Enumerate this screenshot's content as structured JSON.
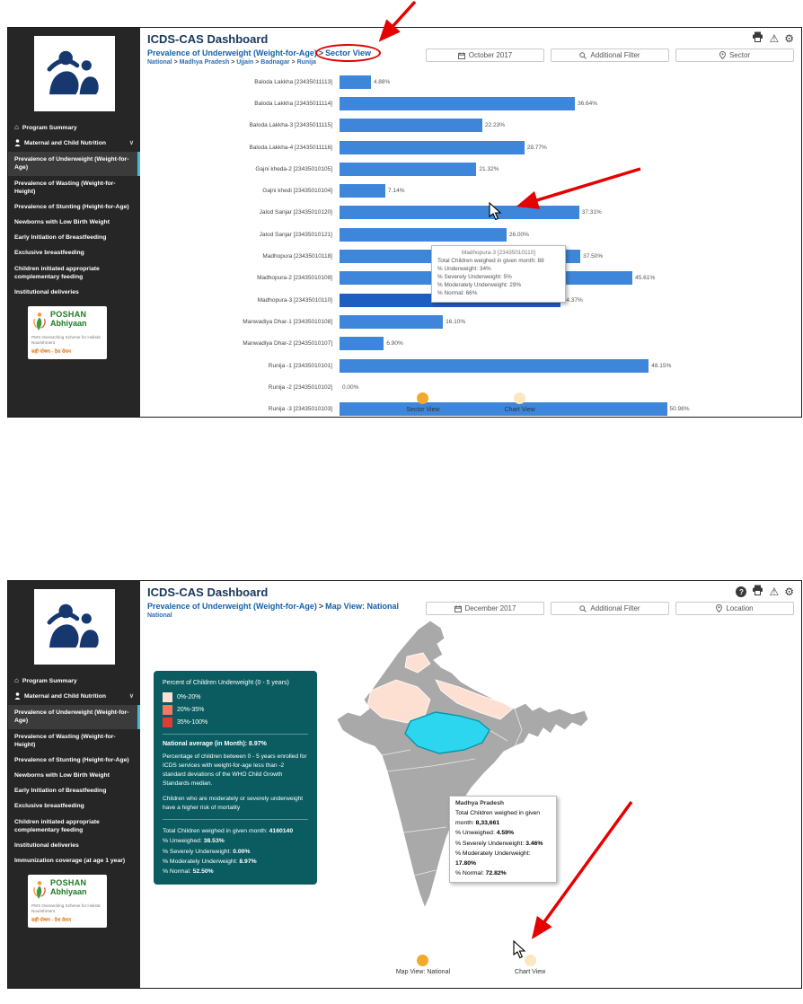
{
  "colors": {
    "sidebar_bg": "#262626",
    "sidebar_active_accent": "#46b8da",
    "header_title": "#17365d",
    "breadcrumb_blue": "#1461ab",
    "bar_color": "#3e86d9",
    "bar_highlight": "#1d5fc0",
    "toggle_active": "#f2a92e",
    "toggle_inactive": "#fbe7c0",
    "legend_bg": "#0a5c61",
    "map_base": "#a9a9a9",
    "map_light_shade": "#fee0d2",
    "map_highlight": "#2bd6ee",
    "annotation_red": "#e60000"
  },
  "glyphs": {
    "gear": "⚙",
    "warning": "⚠",
    "help": "?",
    "home": "⌂",
    "chevron_down": "∨",
    "separator": ">"
  },
  "sidebar": {
    "items": [
      {
        "label": "Program Summary",
        "icon": "home"
      },
      {
        "label": "Maternal and Child Nutrition",
        "icon": "person",
        "chevron": true
      },
      {
        "label": "Prevalence of Underweight (Weight-for-Age)",
        "active": true
      },
      {
        "label": "Prevalence of Wasting (Weight-for-Height)"
      },
      {
        "label": "Prevalence of Stunting (Height-for-Age)"
      },
      {
        "label": "Newborns with Low Birth Weight"
      },
      {
        "label": "Early Initiation of Breastfeeding"
      },
      {
        "label": "Exclusive breastfeeding"
      },
      {
        "label": "Children initiated appropriate complementary feeding"
      },
      {
        "label": "Institutional deliveries"
      }
    ],
    "extra_item": "Immunization coverage (at age 1 year)",
    "poshan": {
      "title1": "POSHAN",
      "title2": "Abhiyaan",
      "tagline": "PM's Overarching Scheme for Holistic Nourishment",
      "slogan": "सही पोषण - देश रोशन"
    }
  },
  "panel_top": {
    "title": "ICDS-CAS Dashboard",
    "icons": [
      "print",
      "warning",
      "gear"
    ],
    "breadcrumb": {
      "section": "Prevalence of Underweight (Weight-for-Age)",
      "separator": ">",
      "view": "Sector View"
    },
    "location_path": [
      "National",
      "Madhya Pradesh",
      "Ujjain",
      "Badnagar",
      "Runija"
    ],
    "filters": {
      "month": "October 2017",
      "additional": "Additional Filter",
      "level": "Sector"
    },
    "tooltip": {
      "title": "Madhopura-3 [23435010110]",
      "lines": [
        "Total Children weighed in given month: 88",
        "% Underweight: 34%",
        "% Severely Underweight: 5%",
        "% Moderately Underweight: 29%",
        "% Normal: 66%"
      ]
    },
    "toggle": [
      {
        "label": "Sector View",
        "active": true
      },
      {
        "label": "Chart View",
        "active": false
      }
    ]
  },
  "chart_data": [
    {
      "type": "bar",
      "orientation": "horizontal",
      "title": "Prevalence of Underweight (Weight-for-Age) - Sector View",
      "categories": [
        "Baloda Lakkha [23435011113]",
        "Baloda Lakkha [23435011114]",
        "Baloda Lakkha-3 [23435011115]",
        "Baloda Lakkha-4 [23435011116]",
        "Gajni kheda-2 [23435010105]",
        "Gajni khedi [23435010104]",
        "Jalod Sanjar [23435010120]",
        "Jalod Sanjar [23435010121]",
        "Madhopura [23435010118]",
        "Madhopura-2 [23435010109]",
        "Madhopura-3 [23435010110]",
        "Manwadiya Dhar-1 [23435010108]",
        "Manwadiya Dhar-2 [23435010107]",
        "Runija -1 [23435010101]",
        "Runija -2 [23435010102]",
        "Runija -3 [23435010103]"
      ],
      "values": [
        4.88,
        36.64,
        22.23,
        28.77,
        21.32,
        7.14,
        37.31,
        26.0,
        37.5,
        45.61,
        34.37,
        16.1,
        6.9,
        48.15,
        0.0,
        50.98
      ],
      "value_labels": [
        "4.88%",
        "36.64%",
        "22.23%",
        "28.77%",
        "21.32%",
        "7.14%",
        "37.31%",
        "26.00%",
        "37.50%",
        "45.61%",
        "34.37%",
        "16.10%",
        "6.90%",
        "48.15%",
        "0.00%",
        "50.98%"
      ],
      "highlighted_index": 10,
      "xlim": [
        0,
        55
      ],
      "legend_position": "none",
      "grid": false
    },
    {
      "type": "heatmap",
      "subtype": "choropleth-map-of-india",
      "title": "Map View: National",
      "legend_buckets": [
        "0%-20%",
        "20%-35%",
        "35%-100%"
      ],
      "national_average_pct": 8.97,
      "highlighted_region": "Madhya Pradesh",
      "highlighted_region_values": {
        "total_children_weighed": "8,33,661",
        "unweighed_pct": 4.59,
        "severely_underweight_pct": 3.46,
        "moderately_underweight_pct": 17.8,
        "normal_pct": 72.82
      }
    }
  ],
  "panel_bottom": {
    "title": "ICDS-CAS Dashboard",
    "icons": [
      "help",
      "print",
      "warning",
      "gear"
    ],
    "breadcrumb": {
      "section": "Prevalence of Underweight (Weight-for-Age)",
      "separator": ">",
      "view": "Map View: National",
      "sub": "National"
    },
    "filters": {
      "month": "December 2017",
      "additional": "Additional Filter",
      "level": "Location"
    },
    "legend": {
      "title": "Percent of Children Underweight (0 - 5 years)",
      "items": [
        {
          "label": "0%-20%",
          "color": "#fee0d2"
        },
        {
          "label": "20%-35%",
          "color": "#f4795f"
        },
        {
          "label": "35%-100%",
          "color": "#e03c31"
        }
      ],
      "national_average": "National average (in Month): 8.97%",
      "description1": "Percentage of children between 0 - 5 years enrolled for ICDS services with weight-for-age less than -2 standard deviations of the WHO Child Growth Standards median.",
      "description2": "Children who are moderately or severely underweight have a higher risk of mortality",
      "stats": [
        {
          "label": "Total Children weighed in given month:",
          "value": "4160140"
        },
        {
          "label": "% Unweighed:",
          "value": "38.53%"
        },
        {
          "label": "% Severely Underweight:",
          "value": "0.00%"
        },
        {
          "label": "% Moderately Underweight:",
          "value": "8.97%"
        },
        {
          "label": "% Normal:",
          "value": "52.50%"
        }
      ]
    },
    "map_tooltip": {
      "title": "Madhya Pradesh",
      "lines": [
        {
          "label": "Total Children weighed in given month:",
          "value": "8,33,661"
        },
        {
          "label": "% Unweighed:",
          "value": "4.59%"
        },
        {
          "label": "% Severely Underweight:",
          "value": "3.46%"
        },
        {
          "label": "% Moderately Underweight:",
          "value": "17.80%"
        },
        {
          "label": "% Normal:",
          "value": "72.82%"
        }
      ]
    },
    "toggle": [
      {
        "label": "Map View: National",
        "active": true
      },
      {
        "label": "Chart View",
        "active": false
      }
    ]
  }
}
